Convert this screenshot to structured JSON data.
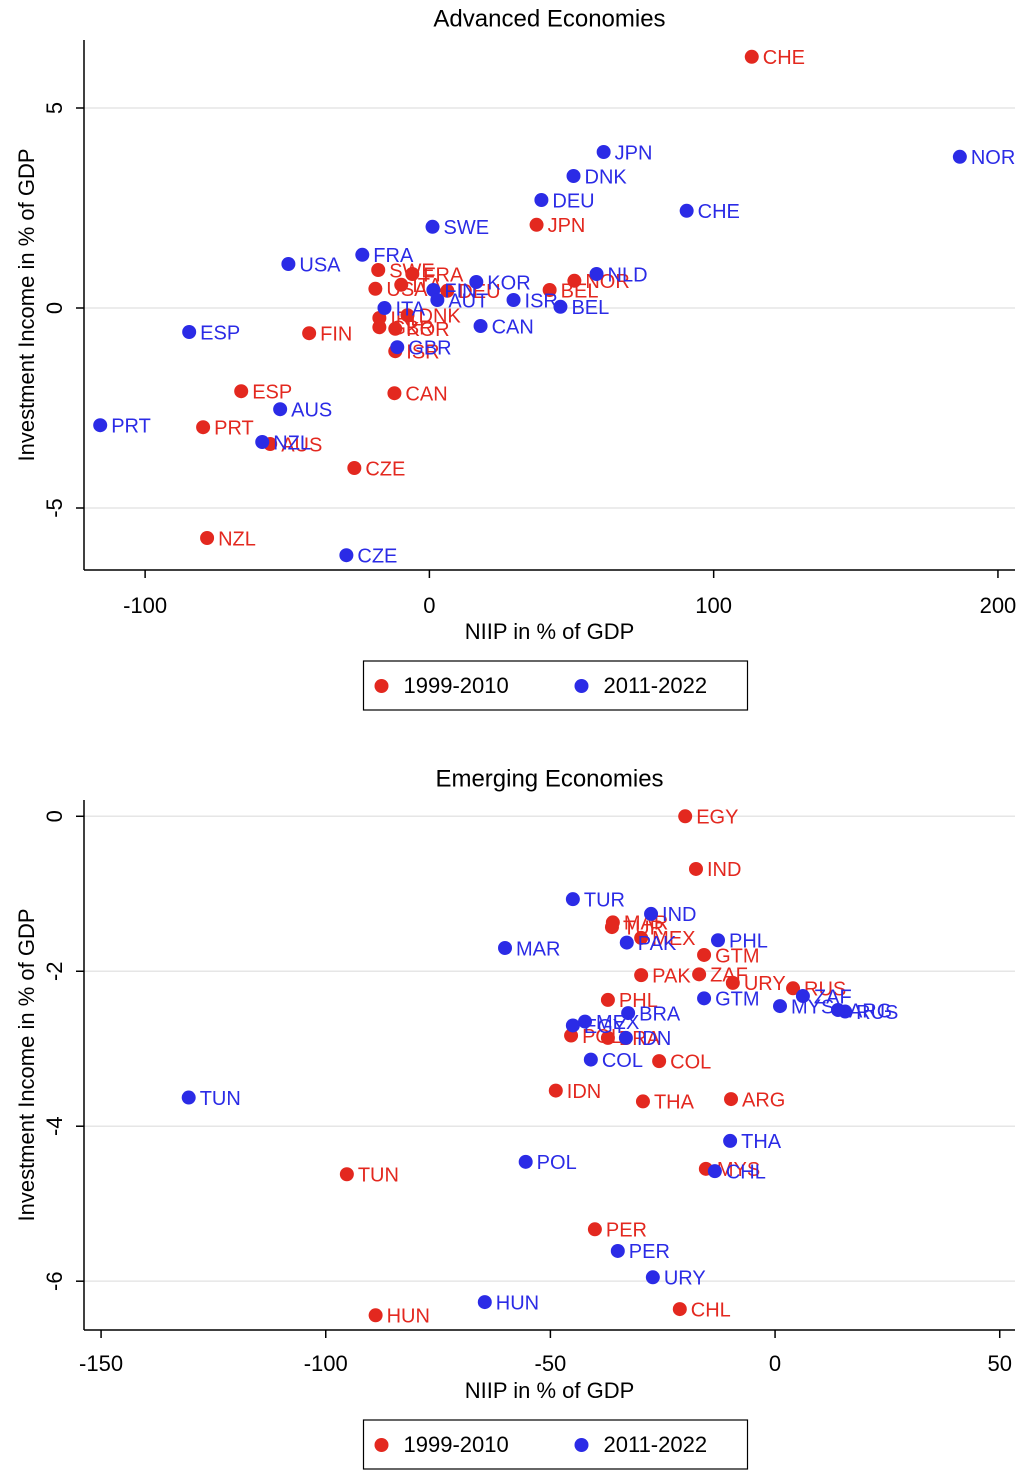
{
  "chart_data": [
    {
      "type": "scatter",
      "title": "Advanced Economies",
      "x_label": "NIIP in % of GDP",
      "y_label": "Investment Income in % of GDP",
      "xlim": [
        -121.5,
        206
      ],
      "ylim": [
        -6.55,
        6.7
      ],
      "xticks": [
        -100,
        0,
        100,
        200
      ],
      "yticks": [
        -5,
        0,
        5
      ],
      "grid": true,
      "series": [
        {
          "name": "1999-2010",
          "color": "#e3281f",
          "labels": [
            "CHE",
            "JPN",
            "SWE",
            "FRA",
            "USA",
            "ITA",
            "DEU",
            "BEL",
            "NOR",
            "DNK",
            "IRL",
            "GBR",
            "KOR",
            "ISR",
            "FIN",
            "CAN",
            "ESP",
            "PRT",
            "AUS",
            "CZE",
            "NZL"
          ],
          "x": [
            113.4,
            37.7,
            -18,
            -6,
            -19,
            -9.9,
            6.3,
            42.3,
            51,
            -7.7,
            -17.6,
            -17.6,
            -12,
            -12,
            -42.3,
            -12.3,
            -66.2,
            -79.6,
            -56,
            -26.4,
            -78.2
          ],
          "y": [
            6.28,
            2.08,
            0.95,
            0.85,
            0.48,
            0.58,
            0.43,
            0.45,
            0.68,
            -0.18,
            -0.25,
            -0.48,
            -0.52,
            -1.08,
            -0.63,
            -2.13,
            -2.08,
            -2.98,
            -3.4,
            -4.0,
            -5.75
          ]
        },
        {
          "name": "2011-2022",
          "color": "#2b2be6",
          "labels": [
            "NOR",
            "JPN",
            "DNK",
            "DEU",
            "CHE",
            "SWE",
            "FRA",
            "USA",
            "KOR",
            "NLD",
            "FIN",
            "AUT",
            "ISR",
            "BEL",
            "ITA",
            "CAN",
            "GBR",
            "ESP",
            "AUS",
            "PRT",
            "NZL",
            "CZE"
          ],
          "x": [
            186.6,
            61.3,
            50.7,
            39.4,
            90.5,
            1.1,
            -23.6,
            -49.6,
            16.5,
            58.8,
            1.4,
            2.8,
            29.6,
            46.1,
            -15.8,
            18,
            -11.3,
            -84.5,
            -52.5,
            -115.8,
            -58.8,
            -29.2
          ],
          "y": [
            3.78,
            3.9,
            3.3,
            2.7,
            2.43,
            2.03,
            1.33,
            1.1,
            0.65,
            0.85,
            0.45,
            0.2,
            0.2,
            0.03,
            0.0,
            -0.45,
            -0.98,
            -0.6,
            -2.53,
            -2.93,
            -3.35,
            -6.18
          ]
        }
      ]
    },
    {
      "type": "scatter",
      "title": "Emerging Economies",
      "x_label": "NIIP in % of GDP",
      "y_label": "Investment Income in % of GDP",
      "xlim": [
        -153.8,
        53.4
      ],
      "ylim": [
        -6.63,
        0.21
      ],
      "xticks": [
        -150,
        -100,
        -50,
        0,
        50
      ],
      "yticks": [
        -6,
        -4,
        -2,
        0
      ],
      "grid": true,
      "series": [
        {
          "name": "1999-2010",
          "color": "#e3281f",
          "labels": [
            "EGY",
            "IND",
            "MAR",
            "TUR",
            "MEX",
            "GTM",
            "PAK",
            "ZAF",
            "URY",
            "RUS",
            "PHL",
            "POL",
            "BRA",
            "COL",
            "IDN",
            "THA",
            "ARG",
            "TUN",
            "MYS",
            "PER",
            "CHL",
            "HUN"
          ],
          "x": [
            -20,
            -17.6,
            -36.1,
            -36.3,
            -29.8,
            -15.8,
            -29.8,
            -16.9,
            -9.4,
            4,
            -37.2,
            -45.4,
            -37.2,
            -25.8,
            -48.8,
            -29.4,
            -9.8,
            -95.3,
            -15.4,
            -40.1,
            -21.2,
            -88.9
          ],
          "y": [
            0,
            -0.68,
            -1.37,
            -1.43,
            -1.57,
            -1.79,
            -2.05,
            -2.04,
            -2.15,
            -2.22,
            -2.37,
            -2.83,
            -2.86,
            -3.16,
            -3.54,
            -3.68,
            -3.65,
            -4.62,
            -4.55,
            -5.33,
            -6.36,
            -6.44
          ]
        },
        {
          "name": "2011-2022",
          "color": "#2b2be6",
          "labels": [
            "TUR",
            "IND",
            "PAK",
            "MAR",
            "PHL",
            "GTM",
            "MYS",
            "ZAF",
            "RUS",
            "ARG",
            "BRA",
            "MEX",
            "EGY",
            "IDN",
            "COL",
            "TUN",
            "THA",
            "POL",
            "CHL",
            "PER",
            "URY",
            "HUN"
          ],
          "x": [
            -45,
            -27.6,
            -33,
            -60.1,
            -12.7,
            -15.8,
            1.1,
            6.2,
            15.6,
            14,
            -32.7,
            -42.3,
            -45,
            -33.2,
            -41,
            -130.5,
            -10,
            -55.5,
            -13.4,
            -35,
            -27.2,
            -64.6
          ],
          "y": [
            -1.07,
            -1.26,
            -1.63,
            -1.7,
            -1.6,
            -2.35,
            -2.45,
            -2.32,
            -2.52,
            -2.5,
            -2.54,
            -2.65,
            -2.7,
            -2.86,
            -3.14,
            -3.63,
            -4.19,
            -4.46,
            -4.58,
            -5.61,
            -5.95,
            -6.27
          ]
        }
      ]
    }
  ]
}
